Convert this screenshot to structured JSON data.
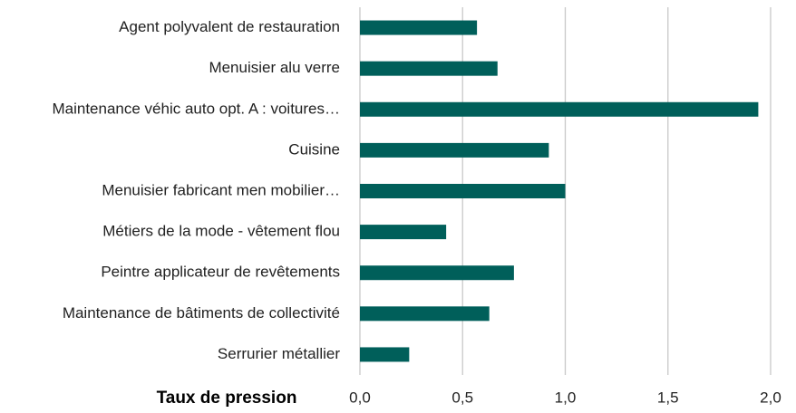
{
  "chart_data": {
    "type": "barh",
    "xlabel": "Taux de pression",
    "categories": [
      "Agent polyvalent de restauration",
      "Menuisier alu verre",
      "Maintenance véhic auto opt. A : voitures…",
      "Cuisine",
      "Menuisier fabricant men mobilier…",
      "Métiers de la mode - vêtement flou",
      "Peintre applicateur de revêtements",
      "Maintenance de bâtiments de collectivité",
      "Serrurier métallier"
    ],
    "values": [
      0.57,
      0.67,
      1.94,
      0.92,
      1.0,
      0.42,
      0.75,
      0.63,
      0.24
    ],
    "color": "#005f5a",
    "xlim": [
      0,
      2.0
    ],
    "xticks": [
      {
        "value": 0,
        "label": "0,0"
      },
      {
        "value": 0.5,
        "label": "0,5"
      },
      {
        "value": 1.0,
        "label": "1,0"
      },
      {
        "value": 1.5,
        "label": "1,5"
      },
      {
        "value": 2.0,
        "label": "2,0"
      }
    ],
    "grid": true
  }
}
